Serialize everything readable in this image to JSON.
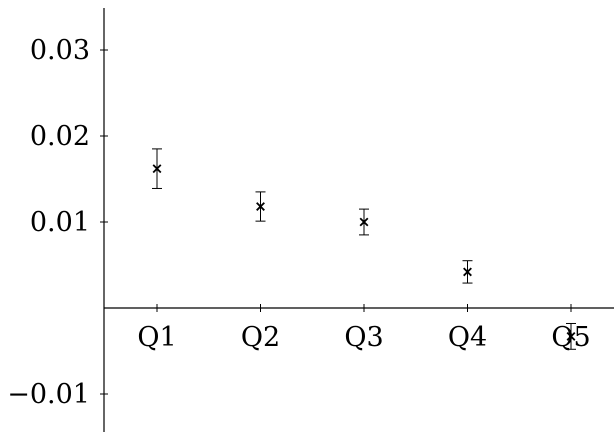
{
  "chart_data": {
    "type": "scatter",
    "title": "",
    "xlabel": "",
    "ylabel": "",
    "categories": [
      "Q1",
      "Q2",
      "Q3",
      "Q4",
      "Q5"
    ],
    "series": [
      {
        "values": [
          0.0162,
          0.0118,
          0.01,
          0.0042,
          -0.0033
        ],
        "err_low": [
          0.0139,
          0.0101,
          0.0085,
          0.0029,
          -0.0048
        ],
        "err_high": [
          0.0185,
          0.0135,
          0.0115,
          0.0055,
          -0.0018
        ]
      }
    ],
    "ylim": [
      -0.0145,
      0.035
    ],
    "y_ticks": [
      -0.01,
      0.01,
      0.02,
      0.03
    ],
    "y_tick_labels": [
      "−0.01",
      "0.01",
      "0.02",
      "0.03"
    ],
    "marker": "x",
    "grid": false,
    "legend": "none",
    "colors": {
      "axis": "#000000",
      "marker": "#000000",
      "error_bar": "#000000"
    }
  }
}
